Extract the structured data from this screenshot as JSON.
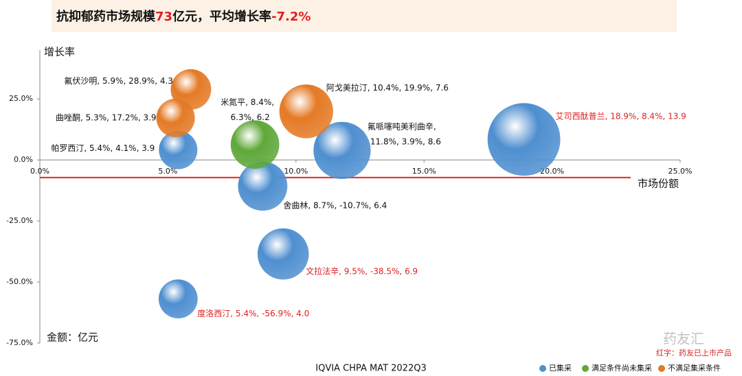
{
  "chart_data": {
    "type": "bubble",
    "title_parts": [
      {
        "text": "抗抑郁药市场规模",
        "color": "#111111"
      },
      {
        "text": "73",
        "color": "#e02020"
      },
      {
        "text": "亿元，平均增长率",
        "color": "#111111"
      },
      {
        "text": "-7.2%",
        "color": "#e02020"
      }
    ],
    "y_label": "增长率",
    "x_label": "市场份额",
    "unit_note": "金额：亿元",
    "source": "IQVIA CHPA MAT 2022Q3",
    "highlight_note": "红字：药友已上市产品",
    "watermark": "药友汇",
    "reference_line": -7.2,
    "reference_color": "#e02020",
    "xlim": [
      0,
      25
    ],
    "xticks": [
      {
        "value": 0,
        "label": "0.0%"
      },
      {
        "value": 5,
        "label": "5.0%"
      },
      {
        "value": 10,
        "label": "10.0%"
      },
      {
        "value": 15,
        "label": "15.0%"
      },
      {
        "value": 20,
        "label": "20.0%"
      },
      {
        "value": 25,
        "label": "25.0%"
      }
    ],
    "ylim": [
      -75,
      45
    ],
    "yticks": [
      {
        "value": 25,
        "label": "25.0%"
      },
      {
        "value": 0,
        "label": "0.0%"
      },
      {
        "value": -25,
        "label": "-25.0%"
      },
      {
        "value": -50,
        "label": "-50.0%"
      },
      {
        "value": -75,
        "label": "-75.0%"
      }
    ],
    "series": [
      {
        "name": "已集采",
        "color": "#4f8fd0",
        "x": [
          5.4,
          11.8,
          18.9,
          8.7,
          9.5,
          5.4
        ],
        "values": [
          4.1,
          3.9,
          8.4,
          -10.7,
          -38.5,
          -56.9
        ],
        "sizes": [
          3.9,
          8.6,
          13.9,
          6.4,
          6.9,
          4.0
        ],
        "value_labels": [
          [
            "帕罗西汀, 5.4%, 4.1%, 3.9"
          ],
          [
            "氟哌噻吨美利曲辛,",
            "11.8%, 3.9%, 8.6"
          ],
          [
            "艾司西酞普兰, 18.9%, 8.4%, 13.9"
          ],
          [
            "舍曲林, 8.7%, -10.7%, 6.4"
          ],
          [
            "文拉法辛, 9.5%, -38.5%, 6.9"
          ],
          [
            "度洛西汀, 5.4%, -56.9%, 4.0"
          ]
        ],
        "label_colors": [
          "#111111",
          "#111111",
          "#e02020",
          "#111111",
          "#e02020",
          "#e02020"
        ]
      },
      {
        "name": "满足条件尚未集采",
        "color": "#5fa83a",
        "x": [
          8.4
        ],
        "values": [
          6.3
        ],
        "sizes": [
          6.2
        ],
        "value_labels": [
          [
            "米氮平, 8.4%,",
            "6.3%, 6.2"
          ]
        ],
        "label_colors": [
          "#111111"
        ]
      },
      {
        "name": "不满足集采条件",
        "color": "#e47a25",
        "x": [
          5.9,
          5.3,
          10.4
        ],
        "values": [
          28.9,
          17.2,
          19.9
        ],
        "sizes": [
          4.3,
          3.9,
          7.6
        ],
        "value_labels": [
          [
            "氟伏沙明, 5.9%, 28.9%, 4.3"
          ],
          [
            "曲唑酮, 5.3%, 17.2%, 3.9"
          ],
          [
            "阿戈美拉汀, 10.4%, 19.9%, 7.6"
          ]
        ],
        "label_colors": [
          "#111111",
          "#111111",
          "#111111"
        ]
      }
    ]
  }
}
